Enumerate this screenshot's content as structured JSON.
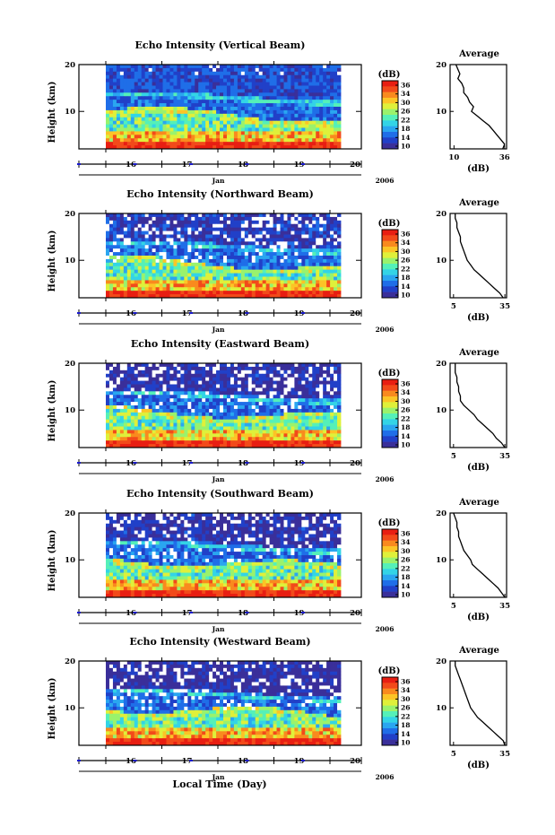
{
  "figure": {
    "xlabel_bottom": "Local Time (Day)",
    "month_label": "Jan",
    "year_label": "2006"
  },
  "colorbar": {
    "label": "(dB)",
    "ticks": [
      "36",
      "34",
      "30",
      "26",
      "22",
      "18",
      "14",
      "10"
    ],
    "colors": [
      "#3a2f9a",
      "#2140c8",
      "#1f6ee8",
      "#2aa6f0",
      "#33d4e6",
      "#55f0b8",
      "#9af26c",
      "#dff03a",
      "#fcc426",
      "#f98a1e",
      "#f24a1a",
      "#e81e12"
    ]
  },
  "chart_data": [
    {
      "type": "heatmap",
      "title": "Echo Intensity (Vertical Beam)",
      "ylabel": "Height (km)",
      "yticks": [
        "20",
        "10"
      ],
      "xticks": [
        "16",
        "17",
        "18",
        "19",
        "20"
      ],
      "x_range": [
        15.5,
        20.4
      ],
      "y_range": [
        2,
        20
      ],
      "z_range": [
        10,
        36
      ],
      "average": {
        "title": "Average",
        "xlabel": "(dB)",
        "xticks": [
          "10",
          "36"
        ],
        "x_range": [
          8,
          37
        ],
        "heights": [
          20,
          19,
          18,
          17,
          16,
          15,
          14,
          13,
          12,
          11,
          10,
          9,
          8,
          7,
          6,
          5,
          4,
          3,
          2
        ],
        "values": [
          11,
          12,
          13,
          12,
          14,
          15,
          15,
          17,
          18,
          20,
          19,
          22,
          25,
          28,
          30,
          32,
          34,
          36,
          35
        ]
      }
    },
    {
      "type": "heatmap",
      "title": "Echo Intensity (Northward Beam)",
      "ylabel": "Height (km)",
      "yticks": [
        "20",
        "10"
      ],
      "xticks": [
        "16",
        "17",
        "18",
        "19",
        "20"
      ],
      "x_range": [
        15.5,
        20.4
      ],
      "y_range": [
        2,
        20
      ],
      "z_range": [
        10,
        36
      ],
      "average": {
        "title": "Average",
        "xlabel": "(dB)",
        "xticks": [
          "5",
          "35"
        ],
        "x_range": [
          3,
          36
        ],
        "heights": [
          20,
          19,
          18,
          17,
          16,
          15,
          14,
          13,
          12,
          11,
          10,
          9,
          8,
          7,
          6,
          5,
          4,
          3,
          2
        ],
        "values": [
          6,
          6,
          7,
          7,
          8,
          9,
          9,
          10,
          11,
          12,
          13,
          15,
          17,
          20,
          23,
          26,
          29,
          32,
          34
        ]
      }
    },
    {
      "type": "heatmap",
      "title": "Echo Intensity (Eastward Beam)",
      "ylabel": "Height (km)",
      "yticks": [
        "20",
        "10"
      ],
      "xticks": [
        "16",
        "17",
        "18",
        "19",
        "20"
      ],
      "x_range": [
        15.5,
        20.4
      ],
      "y_range": [
        2,
        20
      ],
      "z_range": [
        10,
        36
      ],
      "average": {
        "title": "Average",
        "xlabel": "(dB)",
        "xticks": [
          "5",
          "35"
        ],
        "x_range": [
          3,
          36
        ],
        "heights": [
          20,
          19,
          18,
          17,
          16,
          15,
          14,
          13,
          12,
          11,
          10,
          9,
          8,
          7,
          6,
          5,
          4,
          3,
          2
        ],
        "values": [
          6,
          6,
          6,
          7,
          7,
          8,
          8,
          9,
          9,
          11,
          14,
          17,
          19,
          22,
          25,
          28,
          30,
          33,
          35
        ]
      }
    },
    {
      "type": "heatmap",
      "title": "Echo Intensity (Southward Beam)",
      "ylabel": "Height (km)",
      "yticks": [
        "20",
        "10"
      ],
      "xticks": [
        "16",
        "17",
        "18",
        "19",
        "20"
      ],
      "x_range": [
        15.5,
        20.4
      ],
      "y_range": [
        2,
        20
      ],
      "z_range": [
        10,
        36
      ],
      "average": {
        "title": "Average",
        "xlabel": "(dB)",
        "xticks": [
          "5",
          "35"
        ],
        "x_range": [
          3,
          36
        ],
        "heights": [
          20,
          19,
          18,
          17,
          16,
          15,
          14,
          13,
          12,
          11,
          10,
          9,
          8,
          7,
          6,
          5,
          4,
          3,
          2
        ],
        "values": [
          5,
          6,
          7,
          7,
          8,
          8,
          9,
          10,
          11,
          13,
          15,
          16,
          19,
          22,
          25,
          28,
          31,
          33,
          35
        ]
      }
    },
    {
      "type": "heatmap",
      "title": "Echo Intensity (Westward Beam)",
      "ylabel": "Height (km)",
      "yticks": [
        "20",
        "10"
      ],
      "xticks": [
        "16",
        "17",
        "18",
        "19",
        "20"
      ],
      "x_range": [
        15.5,
        20.4
      ],
      "y_range": [
        2,
        20
      ],
      "z_range": [
        10,
        36
      ],
      "average": {
        "title": "Average",
        "xlabel": "(dB)",
        "xticks": [
          "5",
          "35"
        ],
        "x_range": [
          3,
          36
        ],
        "heights": [
          20,
          19,
          18,
          17,
          16,
          15,
          14,
          13,
          12,
          11,
          10,
          9,
          8,
          7,
          6,
          5,
          4,
          3,
          2
        ],
        "values": [
          6,
          6,
          7,
          8,
          9,
          10,
          11,
          12,
          13,
          14,
          15,
          17,
          19,
          22,
          25,
          28,
          31,
          34,
          35
        ]
      }
    }
  ]
}
